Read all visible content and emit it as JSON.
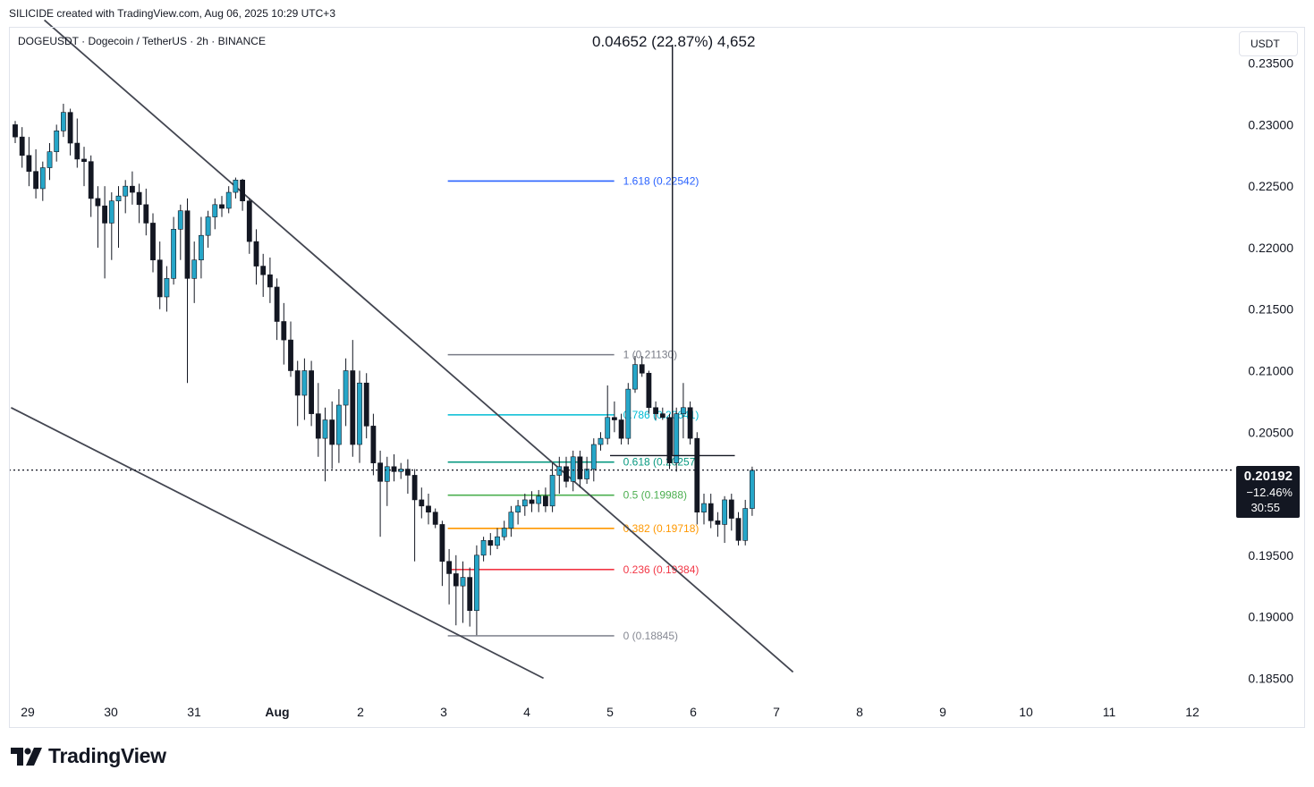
{
  "header": {
    "attribution": "SILICIDE created with TradingView.com, Aug 06, 2025 10:29 UTC+3"
  },
  "symbol": {
    "label": "DOGEUSDT · Dogecoin / TetherUS · 2h · BINANCE",
    "currency": "USDT"
  },
  "measure": {
    "label": "0.04652 (22.87%) 4,652"
  },
  "last_price": {
    "price": "0.20192",
    "change": "−12.46%",
    "countdown": "30:55"
  },
  "logo": {
    "text": "TradingView"
  },
  "colors": {
    "up": "#26a6c8",
    "down": "#131722",
    "line": "#434651"
  },
  "chart_data": {
    "type": "candlestick",
    "title": "DOGEUSDT · Dogecoin / TetherUS · 2h · BINANCE",
    "ylim": [
      0.1835,
      0.2365
    ],
    "y_ticks": [
      "0.23500",
      "0.23000",
      "0.22500",
      "0.22000",
      "0.21500",
      "0.21000",
      "0.20500",
      "0.20000",
      "0.19500",
      "0.19000",
      "0.18500"
    ],
    "y_tick_values": [
      0.235,
      0.23,
      0.225,
      0.22,
      0.215,
      0.21,
      0.205,
      0.2,
      0.195,
      0.19,
      0.185
    ],
    "x_ticks": [
      "29",
      "30",
      "31",
      "Aug",
      "2",
      "3",
      "4",
      "5",
      "6",
      "7",
      "8",
      "9",
      "10",
      "11",
      "12"
    ],
    "x_tick_days": [
      0,
      1,
      2,
      3,
      4,
      5,
      6,
      7,
      8,
      9,
      10,
      11,
      12,
      13,
      14
    ],
    "candles": [
      [
        0.23,
        0.2303,
        0.2285,
        0.229
      ],
      [
        0.229,
        0.2298,
        0.2265,
        0.2275
      ],
      [
        0.2275,
        0.229,
        0.225,
        0.2262
      ],
      [
        0.2262,
        0.228,
        0.224,
        0.2248
      ],
      [
        0.2248,
        0.227,
        0.2238,
        0.2265
      ],
      [
        0.2265,
        0.2285,
        0.2255,
        0.2278
      ],
      [
        0.2278,
        0.23,
        0.227,
        0.2295
      ],
      [
        0.2295,
        0.2317,
        0.229,
        0.231
      ],
      [
        0.231,
        0.2313,
        0.2275,
        0.2285
      ],
      [
        0.2285,
        0.2305,
        0.2265,
        0.2272
      ],
      [
        0.2272,
        0.2282,
        0.225,
        0.227
      ],
      [
        0.227,
        0.2275,
        0.2225,
        0.224
      ],
      [
        0.224,
        0.225,
        0.22,
        0.2234
      ],
      [
        0.2234,
        0.225,
        0.2175,
        0.222
      ],
      [
        0.222,
        0.2245,
        0.219,
        0.2238
      ],
      [
        0.2238,
        0.225,
        0.22,
        0.2242
      ],
      [
        0.2242,
        0.2255,
        0.2228,
        0.225
      ],
      [
        0.225,
        0.2262,
        0.2235,
        0.2245
      ],
      [
        0.2245,
        0.2252,
        0.222,
        0.2235
      ],
      [
        0.2235,
        0.2248,
        0.221,
        0.222
      ],
      [
        0.222,
        0.2228,
        0.218,
        0.219
      ],
      [
        0.219,
        0.2205,
        0.215,
        0.216
      ],
      [
        0.216,
        0.2185,
        0.2148,
        0.2175
      ],
      [
        0.2175,
        0.2225,
        0.217,
        0.2215
      ],
      [
        0.2215,
        0.2235,
        0.219,
        0.223
      ],
      [
        0.223,
        0.224,
        0.209,
        0.2175
      ],
      [
        0.2175,
        0.2205,
        0.2155,
        0.219
      ],
      [
        0.219,
        0.2225,
        0.2175,
        0.221
      ],
      [
        0.221,
        0.223,
        0.22,
        0.2225
      ],
      [
        0.2225,
        0.224,
        0.2215,
        0.2235
      ],
      [
        0.2235,
        0.2242,
        0.2225,
        0.2232
      ],
      [
        0.2232,
        0.225,
        0.2228,
        0.2245
      ],
      [
        0.2245,
        0.2257,
        0.224,
        0.2255
      ],
      [
        0.2255,
        0.2256,
        0.223,
        0.2238
      ],
      [
        0.2238,
        0.224,
        0.2195,
        0.2205
      ],
      [
        0.2205,
        0.2215,
        0.217,
        0.2185
      ],
      [
        0.2185,
        0.2195,
        0.216,
        0.2178
      ],
      [
        0.2178,
        0.2192,
        0.2155,
        0.2168
      ],
      [
        0.2168,
        0.2175,
        0.2125,
        0.214
      ],
      [
        0.214,
        0.2155,
        0.2105,
        0.2125
      ],
      [
        0.2125,
        0.214,
        0.2095,
        0.21
      ],
      [
        0.21,
        0.2108,
        0.2055,
        0.208
      ],
      [
        0.208,
        0.211,
        0.206,
        0.21
      ],
      [
        0.21,
        0.2108,
        0.2055,
        0.2065
      ],
      [
        0.2065,
        0.209,
        0.203,
        0.2045
      ],
      [
        0.2045,
        0.207,
        0.201,
        0.206
      ],
      [
        0.206,
        0.2075,
        0.202,
        0.204
      ],
      [
        0.204,
        0.2085,
        0.2025,
        0.2072
      ],
      [
        0.2072,
        0.211,
        0.2055,
        0.21
      ],
      [
        0.21,
        0.2125,
        0.203,
        0.204
      ],
      [
        0.204,
        0.21,
        0.2025,
        0.209
      ],
      [
        0.209,
        0.2098,
        0.2045,
        0.2055
      ],
      [
        0.2055,
        0.2065,
        0.2015,
        0.2025
      ],
      [
        0.2025,
        0.2035,
        0.1965,
        0.201
      ],
      [
        0.201,
        0.203,
        0.199,
        0.2022
      ],
      [
        0.2022,
        0.2032,
        0.201,
        0.2018
      ],
      [
        0.2018,
        0.2025,
        0.2012,
        0.202
      ],
      [
        0.202,
        0.2028,
        0.2,
        0.2015
      ],
      [
        0.2015,
        0.202,
        0.1945,
        0.1995
      ],
      [
        0.1995,
        0.2005,
        0.198,
        0.199
      ],
      [
        0.199,
        0.2,
        0.1975,
        0.1985
      ],
      [
        0.1985,
        0.1988,
        0.1972,
        0.1975
      ],
      [
        0.1975,
        0.1978,
        0.1925,
        0.1945
      ],
      [
        0.1945,
        0.1955,
        0.191,
        0.1935
      ],
      [
        0.1935,
        0.195,
        0.1893,
        0.1925
      ],
      [
        0.1925,
        0.1945,
        0.1895,
        0.1932
      ],
      [
        0.1932,
        0.194,
        0.1892,
        0.1905
      ],
      [
        0.1905,
        0.1958,
        0.1885,
        0.195
      ],
      [
        0.195,
        0.1965,
        0.1945,
        0.1962
      ],
      [
        0.1962,
        0.1968,
        0.195,
        0.1958
      ],
      [
        0.1958,
        0.1972,
        0.1955,
        0.1965
      ],
      [
        0.1965,
        0.1978,
        0.1962,
        0.1972
      ],
      [
        0.1972,
        0.199,
        0.1965,
        0.1985
      ],
      [
        0.1985,
        0.1995,
        0.1975,
        0.199
      ],
      [
        0.199,
        0.2,
        0.1982,
        0.1995
      ],
      [
        0.1995,
        0.2002,
        0.1985,
        0.1992
      ],
      [
        0.1992,
        0.2003,
        0.1985,
        0.1998
      ],
      [
        0.1998,
        0.2005,
        0.1985,
        0.199
      ],
      [
        0.199,
        0.2025,
        0.1985,
        0.2015
      ],
      [
        0.2015,
        0.203,
        0.2,
        0.2022
      ],
      [
        0.2022,
        0.203,
        0.2005,
        0.201
      ],
      [
        0.201,
        0.2035,
        0.2002,
        0.203
      ],
      [
        0.203,
        0.2035,
        0.2005,
        0.2012
      ],
      [
        0.2012,
        0.203,
        0.2008,
        0.202
      ],
      [
        0.202,
        0.2045,
        0.201,
        0.204
      ],
      [
        0.204,
        0.205,
        0.2035,
        0.2045
      ],
      [
        0.2045,
        0.2088,
        0.204,
        0.2062
      ],
      [
        0.2062,
        0.2075,
        0.205,
        0.206
      ],
      [
        0.206,
        0.2065,
        0.204,
        0.2045
      ],
      [
        0.2045,
        0.209,
        0.204,
        0.2085
      ],
      [
        0.2085,
        0.2112,
        0.2082,
        0.2105
      ],
      [
        0.2105,
        0.2112,
        0.2095,
        0.2098
      ],
      [
        0.2098,
        0.21,
        0.2065,
        0.207
      ],
      [
        0.207,
        0.2075,
        0.206,
        0.2065
      ],
      [
        0.2065,
        0.207,
        0.206,
        0.2062
      ],
      [
        0.2062,
        0.2065,
        0.202,
        0.2025
      ],
      [
        0.2025,
        0.207,
        0.2018,
        0.2065
      ],
      [
        0.2065,
        0.209,
        0.2045,
        0.207
      ],
      [
        0.207,
        0.2075,
        0.204,
        0.2045
      ],
      [
        0.2045,
        0.205,
        0.1975,
        0.1985
      ],
      [
        0.1985,
        0.2,
        0.1975,
        0.1992
      ],
      [
        0.1992,
        0.2,
        0.1972,
        0.1978
      ],
      [
        0.1978,
        0.1985,
        0.1965,
        0.1975
      ],
      [
        0.1975,
        0.1998,
        0.196,
        0.1995
      ],
      [
        0.1995,
        0.2,
        0.197,
        0.198
      ],
      [
        0.198,
        0.1985,
        0.1958,
        0.1962
      ],
      [
        0.1962,
        0.1995,
        0.1958,
        0.1988
      ],
      [
        0.1988,
        0.2022,
        0.1982,
        0.2019
      ]
    ],
    "fibonacci": [
      {
        "label": "0 (0.18845)",
        "level": 0.18845,
        "color": "#868993"
      },
      {
        "label": "0.236 (0.19384)",
        "level": 0.19384,
        "color": "#f23645"
      },
      {
        "label": "0.382 (0.19718)",
        "level": 0.19718,
        "color": "#ff9800"
      },
      {
        "label": "0.5 (0.19988)",
        "level": 0.19988,
        "color": "#4caf50"
      },
      {
        "label": "0.618 (0.20257)",
        "level": 0.20257,
        "color": "#089981"
      },
      {
        "label": "0.786 (0.20641)",
        "level": 0.20641,
        "color": "#00bcd4"
      },
      {
        "label": "1 (0.21130)",
        "level": 0.2113,
        "color": "#787b86"
      },
      {
        "label": "1.618 (0.22542)",
        "level": 0.22542,
        "color": "#2962ff"
      }
    ],
    "fib_range_days": [
      5.05,
      7.05
    ],
    "trendlines": [
      {
        "name": "upper-trendline",
        "from": [
          0.2,
          0.2385
        ],
        "to": [
          9.2,
          0.1855
        ]
      },
      {
        "name": "lower-trendline",
        "from": [
          -0.2,
          0.207
        ],
        "to": [
          6.2,
          0.185
        ]
      }
    ],
    "measure_tool": {
      "day": 7.75,
      "low": 0.2031,
      "high": 0.2365,
      "label": "0.04652 (22.87%) 4,652"
    },
    "resistance_segment": {
      "from_day": 7.0,
      "to_day": 8.5,
      "level": 0.2031
    },
    "last_price_level": 0.20192
  }
}
